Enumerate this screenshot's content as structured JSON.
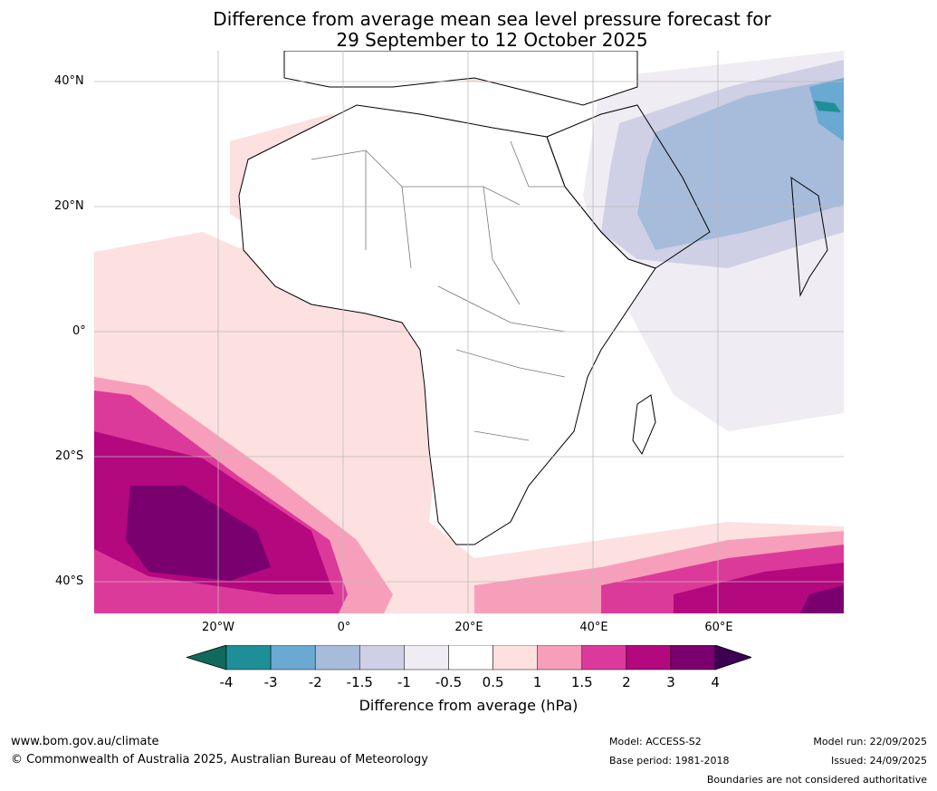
{
  "title_line1": "Difference from average mean sea level pressure forecast for",
  "title_line2": "29 September to 12 October 2025",
  "lat_labels": [
    "40°N",
    "20°N",
    "0°",
    "20°S",
    "40°S"
  ],
  "lon_labels": [
    "20°W",
    "0°",
    "20°E",
    "40°E",
    "60°E"
  ],
  "colorbar": {
    "ticks": [
      "-4",
      "-3",
      "-2",
      "-1.5",
      "-1",
      "-0.5",
      "0.5",
      "1",
      "1.5",
      "2",
      "3",
      "4"
    ],
    "colors": [
      "#0f6a5c",
      "#1e8f96",
      "#6aa9d2",
      "#a7bbdb",
      "#cfd0e5",
      "#efecf3",
      "#ffffff",
      "#fde0e0",
      "#f79fba",
      "#dc3a9a",
      "#b4087e",
      "#7a0070",
      "#3e0052"
    ],
    "label": "Difference from average (hPa)"
  },
  "footer": {
    "website": "www.bom.gov.au/climate",
    "copyright": "© Commonwealth of Australia 2025, Australian Bureau of Meteorology",
    "model": "Model: ACCESS-S2",
    "base_period": "Base period: 1981-2018",
    "model_run": "Model run: 22/09/2025",
    "issued": "Issued: 24/09/2025",
    "disclaimer": "Boundaries are not considered authoritative"
  }
}
